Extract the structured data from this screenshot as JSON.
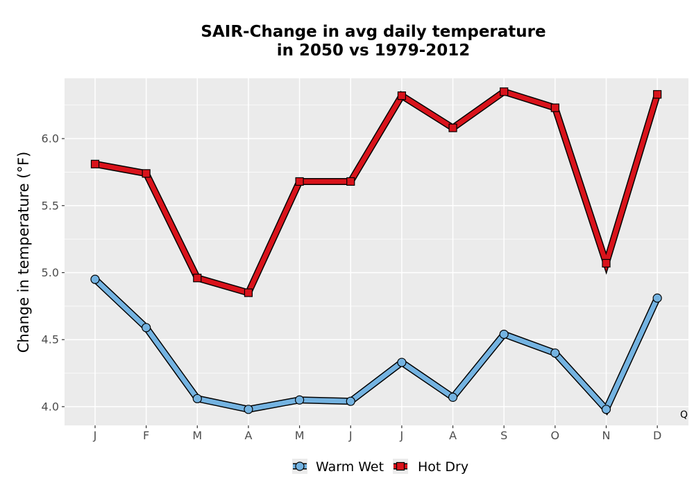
{
  "chart_data": {
    "type": "line",
    "title": "SAIR-Change in avg daily temperature",
    "subtitle": "in 2050 vs 1979-2012",
    "xlabel": "",
    "ylabel": "Change in temperature (°F)",
    "categories": [
      "J",
      "F",
      "M",
      "A",
      "M",
      "J",
      "J",
      "A",
      "S",
      "O",
      "N",
      "D"
    ],
    "yticks": [
      "4.0",
      "4.5",
      "5.0",
      "5.5",
      "6.0"
    ],
    "ylim": [
      3.86,
      6.45
    ],
    "grid": true,
    "legend_position": "bottom",
    "corner_mark": "Q",
    "series": [
      {
        "name": "Warm Wet",
        "marker": "circle",
        "color": "#74b3e1",
        "values": [
          4.95,
          4.59,
          4.06,
          3.98,
          4.05,
          4.04,
          4.33,
          4.07,
          4.54,
          4.4,
          3.98,
          4.81
        ]
      },
      {
        "name": "Hot Dry",
        "marker": "square",
        "color": "#d9131b",
        "values": [
          5.81,
          5.74,
          4.96,
          4.85,
          5.68,
          5.68,
          6.32,
          6.08,
          6.35,
          6.23,
          5.07,
          6.33
        ]
      }
    ],
    "colors": {
      "panel_background": "#ebebeb",
      "grid": "#ffffff",
      "outline": "#000000"
    }
  }
}
